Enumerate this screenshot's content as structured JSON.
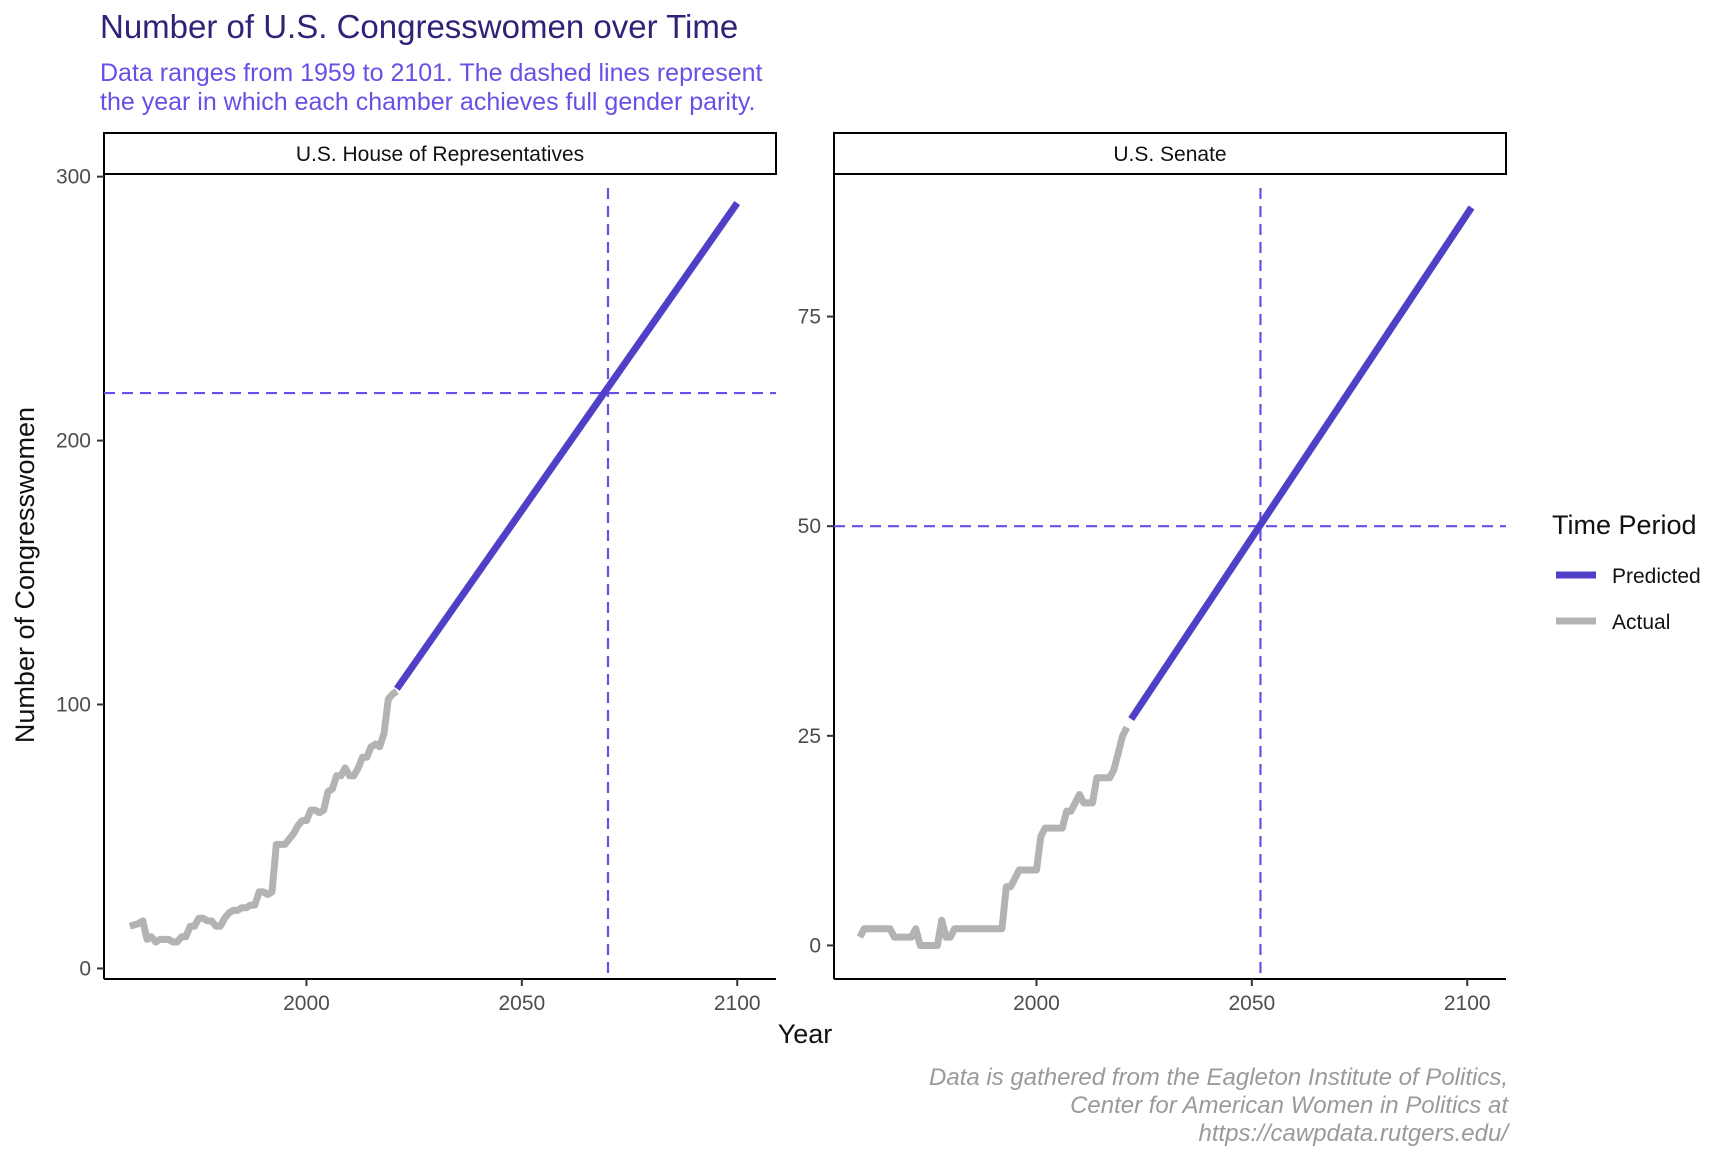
{
  "title": "Number of U.S. Congresswomen over Time",
  "subtitle": [
    "Data ranges from 1959 to 2101. The dashed lines represent",
    "the year in which each chamber achieves full gender parity."
  ],
  "caption": [
    "Data is gathered from the Eagleton Institute of Politics,",
    "Center for American Women in Politics at",
    "https://cawpdata.rutgers.edu/"
  ],
  "colors": {
    "predicted": "#5040c8",
    "actual": "#b3b3b3",
    "reference": "#6a4fe6",
    "title": "#2d2478",
    "subtitle": "#6a4fe6",
    "caption": "#9a9a9a"
  },
  "chart_data": {
    "type": "line",
    "xlabel": "Year",
    "ylabel": "Number of Congresswomen",
    "legend": {
      "title": "Time Period",
      "position": "right",
      "entries": [
        {
          "label": "Predicted",
          "color": "#5040c8"
        },
        {
          "label": "Actual",
          "color": "#b3b3b3"
        }
      ]
    },
    "facets": [
      {
        "label": "U.S. House of Representatives",
        "xlim": [
          1953,
          2109
        ],
        "ylim": [
          -4,
          301
        ],
        "xticks": [
          2000,
          2050,
          2100
        ],
        "yticks": [
          0,
          100,
          200,
          300
        ],
        "hline": 218,
        "vline": 2070,
        "series": [
          {
            "name": "Actual",
            "x": [
              1959,
              1961,
              1962,
              1963,
              1964,
              1965,
              1966,
              1967,
              1968,
              1969,
              1970,
              1971,
              1972,
              1973,
              1974,
              1975,
              1976,
              1977,
              1978,
              1979,
              1980,
              1981,
              1982,
              1983,
              1984,
              1985,
              1986,
              1987,
              1988,
              1989,
              1990,
              1991,
              1992,
              1993,
              1994,
              1995,
              1996,
              1997,
              1998,
              1999,
              2000,
              2001,
              2002,
              2003,
              2004,
              2005,
              2006,
              2007,
              2008,
              2009,
              2010,
              2011,
              2012,
              2013,
              2014,
              2015,
              2016,
              2017,
              2018,
              2019,
              2020,
              2021
            ],
            "y": [
              16,
              17,
              18,
              11,
              12,
              10,
              11,
              11,
              11,
              10,
              10,
              12,
              12,
              16,
              16,
              19,
              19,
              18,
              18,
              16,
              16,
              19,
              21,
              22,
              22,
              23,
              23,
              24,
              24,
              29,
              29,
              28,
              29,
              47,
              47,
              47,
              49,
              51,
              54,
              56,
              56,
              60,
              60,
              59,
              60,
              67,
              68,
              73,
              73,
              76,
              73,
              73,
              76,
              80,
              80,
              84,
              85,
              84,
              89,
              102,
              104,
              105
            ]
          },
          {
            "name": "Predicted",
            "x": [
              2021,
              2100
            ],
            "y": [
              106,
              290
            ]
          }
        ]
      },
      {
        "label": "U.S. Senate",
        "xlim": [
          1953,
          2109
        ],
        "ylim": [
          -4,
          92
        ],
        "xticks": [
          2000,
          2050,
          2100
        ],
        "yticks": [
          0,
          25,
          50,
          75
        ],
        "hline": 50,
        "vline": 2052,
        "series": [
          {
            "name": "Actual",
            "x": [
              1959,
              1960,
              1961,
              1962,
              1963,
              1964,
              1965,
              1966,
              1967,
              1968,
              1969,
              1970,
              1971,
              1972,
              1973,
              1974,
              1975,
              1976,
              1977,
              1978,
              1979,
              1980,
              1981,
              1982,
              1983,
              1984,
              1985,
              1986,
              1987,
              1988,
              1989,
              1990,
              1991,
              1992,
              1993,
              1994,
              1995,
              1996,
              1997,
              1998,
              1999,
              2000,
              2001,
              2002,
              2003,
              2004,
              2005,
              2006,
              2007,
              2008,
              2009,
              2010,
              2011,
              2012,
              2013,
              2014,
              2015,
              2016,
              2017,
              2018,
              2019,
              2020,
              2021
            ],
            "y": [
              1,
              2,
              2,
              2,
              2,
              2,
              2,
              2,
              1,
              1,
              1,
              1,
              1,
              2,
              0,
              0,
              0,
              0,
              0,
              3,
              1,
              1,
              2,
              2,
              2,
              2,
              2,
              2,
              2,
              2,
              2,
              2,
              2,
              2,
              7,
              7,
              8,
              9,
              9,
              9,
              9,
              9,
              13,
              14,
              14,
              14,
              14,
              14,
              16,
              16,
              17,
              18,
              17,
              17,
              17,
              20,
              20,
              20,
              20,
              21,
              23,
              25,
              26
            ]
          },
          {
            "name": "Predicted",
            "x": [
              2022,
              2101
            ],
            "y": [
              27,
              88
            ]
          }
        ]
      }
    ]
  }
}
